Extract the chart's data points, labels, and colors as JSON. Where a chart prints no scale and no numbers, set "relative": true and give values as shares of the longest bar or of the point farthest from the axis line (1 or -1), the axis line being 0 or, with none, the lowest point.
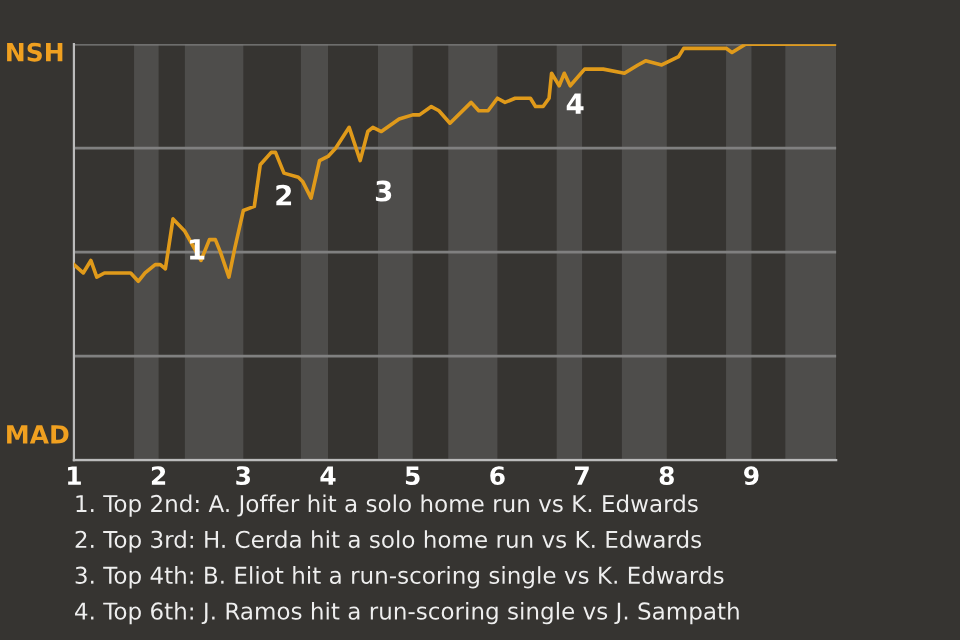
{
  "chart_data": {
    "type": "line",
    "relative": true,
    "x": [
      1.0,
      1.11,
      1.2,
      1.27,
      1.36,
      1.58,
      1.67,
      1.76,
      1.84,
      1.96,
      2.02,
      2.08,
      2.17,
      2.31,
      2.42,
      2.5,
      2.6,
      2.67,
      2.73,
      2.83,
      2.9,
      3.0,
      3.13,
      3.2,
      3.33,
      3.38,
      3.48,
      3.65,
      3.7,
      3.8,
      3.9,
      4.0,
      4.09,
      4.25,
      4.38,
      4.47,
      4.53,
      4.63,
      4.84,
      5.0,
      5.08,
      5.22,
      5.31,
      5.44,
      5.69,
      5.78,
      5.89,
      6.0,
      6.09,
      6.21,
      6.39,
      6.45,
      6.54,
      6.61,
      6.64,
      6.7,
      6.73,
      6.79,
      6.86,
      7.03,
      7.25,
      7.5,
      7.66,
      7.75,
      7.94,
      8.14,
      8.2,
      8.39,
      8.7,
      8.77,
      8.93,
      9.42,
      10.0
    ],
    "series": [
      {
        "color": "#e09a1a",
        "values": [
          0.47,
          0.45,
          0.48,
          0.44,
          0.45,
          0.45,
          0.45,
          0.43,
          0.45,
          0.47,
          0.47,
          0.46,
          0.58,
          0.55,
          0.51,
          0.48,
          0.53,
          0.53,
          0.5,
          0.44,
          0.51,
          0.6,
          0.61,
          0.71,
          0.74,
          0.74,
          0.69,
          0.68,
          0.67,
          0.63,
          0.72,
          0.73,
          0.75,
          0.8,
          0.72,
          0.79,
          0.8,
          0.79,
          0.82,
          0.83,
          0.83,
          0.85,
          0.84,
          0.81,
          0.86,
          0.84,
          0.84,
          0.87,
          0.86,
          0.87,
          0.87,
          0.85,
          0.85,
          0.87,
          0.93,
          0.91,
          0.9,
          0.93,
          0.9,
          0.94,
          0.94,
          0.93,
          0.95,
          0.96,
          0.95,
          0.97,
          0.99,
          0.99,
          0.99,
          0.98,
          1.0,
          1.0,
          1.0
        ]
      }
    ],
    "xlim": [
      1,
      10
    ],
    "xticks": [
      1,
      2,
      3,
      4,
      5,
      6,
      7,
      8,
      9
    ],
    "bands": [
      {
        "axis": "x",
        "from": 1.71,
        "to": 2,
        "color": "#4e4d4b"
      },
      {
        "axis": "x",
        "from": 2.31,
        "to": 3,
        "color": "#4e4d4b"
      },
      {
        "axis": "x",
        "from": 3.68,
        "to": 4,
        "color": "#4e4d4b"
      },
      {
        "axis": "x",
        "from": 4.59,
        "to": 5,
        "color": "#4e4d4b"
      },
      {
        "axis": "x",
        "from": 5.42,
        "to": 6,
        "color": "#4e4d4b"
      },
      {
        "axis": "x",
        "from": 6.7,
        "to": 7,
        "color": "#4e4d4b"
      },
      {
        "axis": "x",
        "from": 7.47,
        "to": 8,
        "color": "#4e4d4b"
      },
      {
        "axis": "x",
        "from": 8.7,
        "to": 9,
        "color": "#4e4d4b"
      },
      {
        "axis": "x",
        "from": 9.4,
        "to": 10,
        "color": "#4e4d4b"
      }
    ],
    "annotations": [
      "NSH",
      "MAD",
      {
        "text": "1",
        "x": 2.17,
        "y": 0.58
      },
      {
        "text": "2",
        "x": 3.2,
        "y": 0.71
      },
      {
        "text": "3",
        "x": 4.38,
        "y": 0.72
      },
      {
        "text": "4",
        "x": 6.64,
        "y": 0.93
      },
      "1. Top 2nd: A. Joffer hit a solo home run vs K. Edwards",
      "2. Top 3rd: H. Cerda hit a solo home run vs K. Edwards",
      "3. Top 4th: B. Eliot hit a run-scoring single vs K. Edwards",
      "4. Top 6th: J. Ramos hit a run-scoring single vs J. Sampath"
    ],
    "grid": "y",
    "legend": false,
    "marker": "none",
    "line_style": "solid"
  }
}
